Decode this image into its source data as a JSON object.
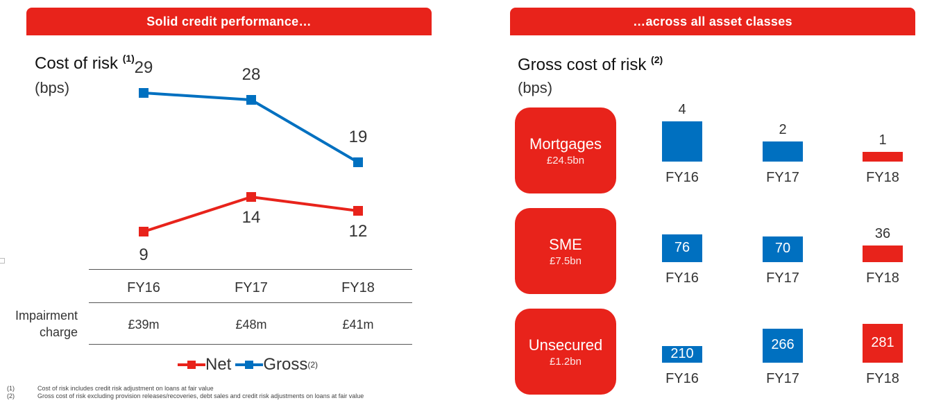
{
  "left_panel": {
    "banner": "Solid credit performance…",
    "title": "Cost of risk",
    "title_note": "(1)",
    "unit": "(bps)",
    "impairment_label_line1": "Impairment",
    "impairment_label_line2": "charge",
    "impairment_values": [
      "£39m",
      "£48m",
      "£41m"
    ],
    "legend_net": "Net",
    "legend_gross": "Gross",
    "legend_gross_note": "(2)"
  },
  "right_panel": {
    "banner": "…across all asset classes",
    "title": "Gross cost of risk",
    "title_note": "(2)",
    "unit": "(bps)"
  },
  "footnotes": [
    {
      "num": "(1)",
      "text": "Cost of risk includes credit risk adjustment on loans at fair value"
    },
    {
      "num": "(2)",
      "text": "Gross cost of risk excluding provision releases/recoveries, debt sales and credit risk adjustments on loans at fair value"
    }
  ],
  "chart_data": [
    {
      "type": "line",
      "title": "Cost of risk",
      "ylabel": "(bps)",
      "categories": [
        "FY16",
        "FY17",
        "FY18"
      ],
      "series": [
        {
          "name": "Gross",
          "values": [
            29,
            28,
            19
          ],
          "color": "#0070c0"
        },
        {
          "name": "Net",
          "values": [
            9,
            14,
            12
          ],
          "color": "#e8231b"
        }
      ],
      "ylim": [
        0,
        35
      ],
      "grid": false,
      "legend": "bottom"
    },
    {
      "type": "bar",
      "title": "Gross cost of risk",
      "ylabel": "(bps)",
      "categories": [
        "FY16",
        "FY17",
        "FY18"
      ],
      "segments": [
        {
          "name": "Mortgages",
          "size": "£24.5bn",
          "values": [
            4,
            2,
            1
          ],
          "colors": [
            "#0070c0",
            "#0070c0",
            "#e8231b"
          ]
        },
        {
          "name": "SME",
          "size": "£7.5bn",
          "values": [
            76,
            70,
            36
          ],
          "colors": [
            "#0070c0",
            "#0070c0",
            "#e8231b"
          ]
        },
        {
          "name": "Unsecured",
          "size": "£1.2bn",
          "values": [
            210,
            266,
            281
          ],
          "colors": [
            "#0070c0",
            "#0070c0",
            "#e8231b"
          ]
        }
      ]
    }
  ]
}
